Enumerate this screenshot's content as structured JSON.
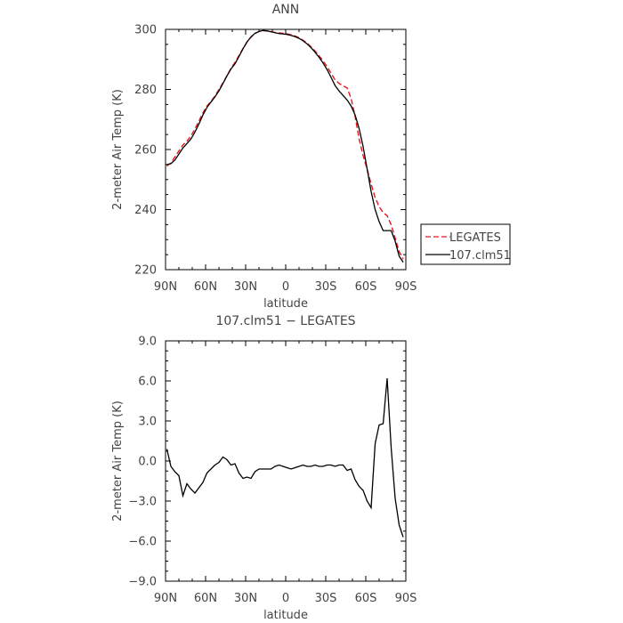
{
  "chart_data": [
    {
      "type": "line",
      "title": "ANN",
      "xlabel": "latitude",
      "ylabel": "2-meter Air Temp (K)",
      "xlim": [
        90,
        -90
      ],
      "ylim": [
        220,
        300
      ],
      "x_ticks": [
        90,
        60,
        30,
        0,
        -30,
        -60,
        -90
      ],
      "x_tick_labels": [
        "90N",
        "60N",
        "30N",
        "0",
        "30S",
        "60S",
        "90S"
      ],
      "y_ticks": [
        220,
        240,
        260,
        280,
        300
      ],
      "y_tick_labels": [
        "220",
        "240",
        "260",
        "280",
        "300"
      ],
      "legend": "right",
      "series": [
        {
          "name": "LEGATES",
          "color": "#e8141a",
          "dash": "dashed",
          "x": [
            89,
            86,
            83,
            80,
            77,
            74,
            71,
            68,
            65,
            62,
            59,
            56,
            53,
            50,
            47,
            44,
            41,
            38,
            35,
            32,
            29,
            26,
            23,
            20,
            17,
            14,
            11,
            8,
            5,
            2,
            -1,
            -4,
            -7,
            -10,
            -13,
            -16,
            -19,
            -22,
            -25,
            -28,
            -31,
            -34,
            -37,
            -40,
            -43,
            -46,
            -49,
            -52,
            -55,
            -58,
            -61,
            -64,
            -67,
            -70,
            -73,
            -76,
            -79,
            -82,
            -85,
            -88
          ],
          "y": [
            254.5,
            255.5,
            257.5,
            259.5,
            261.5,
            262.8,
            264.5,
            266.8,
            269.5,
            272.2,
            274.5,
            276.0,
            277.8,
            280.0,
            282.2,
            284.6,
            287.0,
            289.0,
            291.3,
            293.6,
            295.8,
            297.4,
            298.6,
            299.3,
            299.6,
            299.5,
            299.3,
            299.0,
            298.8,
            298.7,
            298.5,
            298.2,
            297.8,
            297.2,
            296.4,
            295.4,
            294.2,
            292.8,
            291.2,
            289.5,
            287.6,
            285.4,
            283.2,
            282.0,
            281.2,
            280.5,
            277.0,
            271.0,
            263.5,
            258.0,
            253.5,
            248.5,
            244.0,
            241.0,
            239.0,
            238.0,
            235.0,
            230.5,
            226.0,
            223.5
          ]
        },
        {
          "name": "107.clm51",
          "color": "#000000",
          "dash": "solid",
          "x": [
            89,
            86,
            83,
            80,
            77,
            74,
            71,
            68,
            65,
            62,
            59,
            56,
            53,
            50,
            47,
            44,
            41,
            38,
            35,
            32,
            29,
            26,
            23,
            20,
            17,
            14,
            11,
            8,
            5,
            2,
            -1,
            -4,
            -7,
            -10,
            -13,
            -16,
            -19,
            -22,
            -25,
            -28,
            -31,
            -34,
            -37,
            -40,
            -43,
            -46,
            -49,
            -52,
            -55,
            -58,
            -61,
            -64,
            -67,
            -70,
            -73,
            -76,
            -79,
            -82,
            -85,
            -88
          ],
          "y": [
            255.0,
            255.3,
            256.5,
            258.5,
            260.5,
            262.0,
            263.5,
            265.8,
            268.5,
            271.5,
            274.0,
            275.8,
            277.5,
            279.5,
            282.0,
            284.5,
            286.8,
            288.5,
            291.0,
            293.5,
            295.8,
            297.5,
            298.7,
            299.3,
            299.6,
            299.5,
            299.2,
            298.9,
            298.6,
            298.5,
            298.3,
            298.0,
            297.6,
            297.0,
            296.2,
            295.2,
            293.9,
            292.4,
            290.7,
            288.8,
            286.6,
            284.0,
            281.3,
            279.5,
            278.0,
            276.5,
            274.5,
            271.5,
            267.0,
            261.0,
            253.5,
            246.0,
            240.0,
            236.0,
            233.0,
            233.0,
            233.0,
            229.5,
            224.5,
            222.5
          ]
        }
      ]
    },
    {
      "type": "line",
      "title": "107.clm51 − LEGATES",
      "xlabel": "latitude",
      "ylabel": "2-meter Air Temp (K)",
      "xlim": [
        90,
        -90
      ],
      "ylim": [
        -9.0,
        9.0
      ],
      "x_ticks": [
        90,
        60,
        30,
        0,
        -30,
        -60,
        -90
      ],
      "x_tick_labels": [
        "90N",
        "60N",
        "30N",
        "0",
        "30S",
        "60S",
        "90S"
      ],
      "y_ticks": [
        -9.0,
        -6.0,
        -3.0,
        0.0,
        3.0,
        6.0,
        9.0
      ],
      "y_tick_labels": [
        "−9.0",
        "−6.0",
        "−3.0",
        "0.0",
        "3.0",
        "6.0",
        "9.0"
      ],
      "series": [
        {
          "name": "",
          "color": "#000000",
          "dash": "solid",
          "x": [
            89,
            86,
            83,
            80,
            77,
            74,
            71,
            68,
            65,
            62,
            59,
            56,
            53,
            50,
            47,
            44,
            41,
            38,
            35,
            32,
            29,
            26,
            23,
            20,
            17,
            14,
            11,
            8,
            5,
            2,
            -1,
            -4,
            -7,
            -10,
            -13,
            -16,
            -19,
            -22,
            -25,
            -28,
            -31,
            -34,
            -37,
            -40,
            -43,
            -46,
            -49,
            -52,
            -55,
            -58,
            -61,
            -64,
            -67,
            -70,
            -73,
            -76,
            -79,
            -82,
            -85,
            -88
          ],
          "y": [
            0.9,
            -0.4,
            -0.8,
            -1.1,
            -2.6,
            -1.7,
            -2.1,
            -2.4,
            -2.0,
            -1.6,
            -0.9,
            -0.6,
            -0.3,
            -0.1,
            0.3,
            0.1,
            -0.3,
            -0.2,
            -0.9,
            -1.3,
            -1.2,
            -1.3,
            -0.8,
            -0.6,
            -0.6,
            -0.6,
            -0.6,
            -0.4,
            -0.3,
            -0.4,
            -0.5,
            -0.6,
            -0.5,
            -0.4,
            -0.3,
            -0.4,
            -0.4,
            -0.3,
            -0.4,
            -0.4,
            -0.3,
            -0.3,
            -0.4,
            -0.3,
            -0.3,
            -0.7,
            -0.6,
            -1.4,
            -1.9,
            -2.2,
            -3.0,
            -3.5,
            1.3,
            2.7,
            2.8,
            6.2,
            1.0,
            -2.8,
            -4.8,
            -5.7
          ]
        }
      ]
    }
  ]
}
